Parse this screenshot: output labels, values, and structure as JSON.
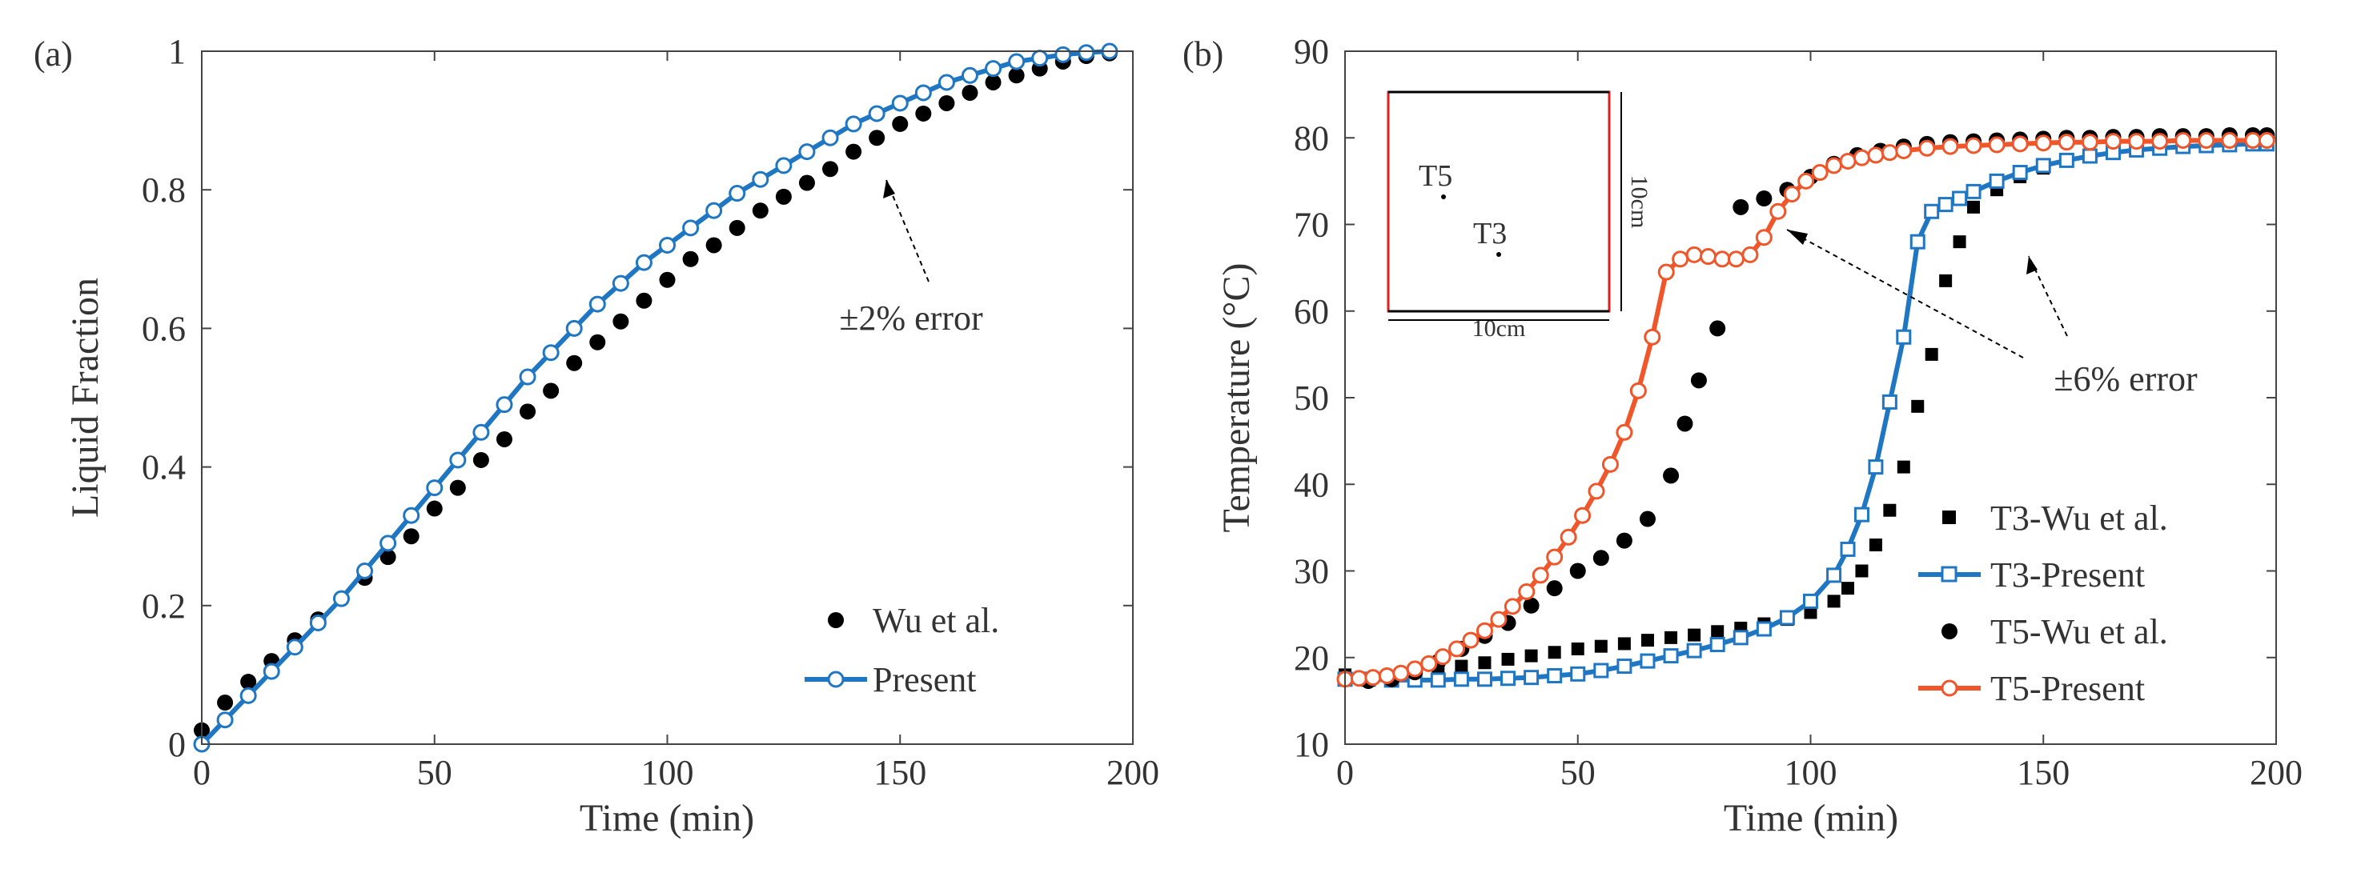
{
  "chart_data": [
    {
      "type": "line",
      "panel_label": "(a)",
      "xlabel": "Time (min)",
      "ylabel": "Liquid Fraction",
      "xlim": [
        0,
        200
      ],
      "ylim": [
        0,
        1
      ],
      "xticks": [
        0,
        50,
        100,
        150,
        200
      ],
      "xtick_labels": [
        "0",
        "50",
        "100",
        "150",
        "200"
      ],
      "yticks": [
        0,
        0.2,
        0.4,
        0.6,
        0.8,
        1
      ],
      "ytick_labels": [
        "0",
        "0.2",
        "0.4",
        "0.6",
        "0.8",
        "1"
      ],
      "legend_position": "bottom-right",
      "annotation": {
        "text": "±2% error",
        "target_x": 145,
        "target_y": 0.875
      },
      "series": [
        {
          "name": "Wu et al.",
          "style": "dots",
          "color": "#000000",
          "x": [
            0,
            5,
            10,
            15,
            20,
            25,
            30,
            35,
            40,
            45,
            50,
            55,
            60,
            65,
            70,
            75,
            80,
            85,
            90,
            95,
            100,
            105,
            110,
            115,
            120,
            125,
            130,
            135,
            140,
            145,
            150,
            155,
            160,
            165,
            170,
            175,
            180,
            185,
            190,
            195
          ],
          "y": [
            0.02,
            0.06,
            0.09,
            0.12,
            0.15,
            0.18,
            0.21,
            0.24,
            0.27,
            0.3,
            0.34,
            0.37,
            0.41,
            0.44,
            0.48,
            0.51,
            0.55,
            0.58,
            0.61,
            0.64,
            0.67,
            0.7,
            0.72,
            0.745,
            0.77,
            0.79,
            0.81,
            0.83,
            0.855,
            0.875,
            0.895,
            0.91,
            0.925,
            0.94,
            0.955,
            0.965,
            0.975,
            0.985,
            0.993,
            0.997
          ]
        },
        {
          "name": "Present",
          "style": "line-circle",
          "color": "#1f77c4",
          "x": [
            0,
            5,
            10,
            15,
            20,
            25,
            30,
            35,
            40,
            45,
            50,
            55,
            60,
            65,
            70,
            75,
            80,
            85,
            90,
            95,
            100,
            105,
            110,
            115,
            120,
            125,
            130,
            135,
            140,
            145,
            150,
            155,
            160,
            165,
            170,
            175,
            180,
            185,
            190,
            195
          ],
          "y": [
            0,
            0.035,
            0.07,
            0.105,
            0.14,
            0.175,
            0.21,
            0.25,
            0.29,
            0.33,
            0.37,
            0.41,
            0.45,
            0.49,
            0.53,
            0.565,
            0.6,
            0.635,
            0.665,
            0.695,
            0.72,
            0.745,
            0.77,
            0.795,
            0.815,
            0.835,
            0.855,
            0.875,
            0.895,
            0.91,
            0.925,
            0.94,
            0.955,
            0.965,
            0.975,
            0.985,
            0.99,
            0.995,
            0.998,
            1.0
          ]
        }
      ]
    },
    {
      "type": "line",
      "panel_label": "(b)",
      "xlabel": "Time (min)",
      "ylabel": "Temperature (°C)",
      "xlim": [
        0,
        200
      ],
      "ylim": [
        10,
        90
      ],
      "xticks": [
        0,
        50,
        100,
        150,
        200
      ],
      "xtick_labels": [
        "0",
        "50",
        "100",
        "150",
        "200"
      ],
      "yticks": [
        10,
        20,
        30,
        40,
        50,
        60,
        70,
        80,
        90
      ],
      "ytick_labels": [
        "10",
        "20",
        "30",
        "40",
        "50",
        "60",
        "70",
        "80",
        "90"
      ],
      "legend_position": "bottom-right",
      "annotation": {
        "text": "±6% error",
        "targets": [
          [
            93,
            73
          ],
          [
            133,
            68
          ]
        ]
      },
      "inset": {
        "labels": [
          "T5",
          "T3"
        ],
        "width_label": "10cm",
        "height_label": "10cm",
        "border_color": "#e02020",
        "wall_color": "#000000"
      },
      "series": [
        {
          "name": "T3-Wu et al.",
          "style": "squares",
          "color": "#000000",
          "x": [
            0,
            5,
            10,
            15,
            20,
            25,
            30,
            35,
            40,
            45,
            50,
            55,
            60,
            65,
            70,
            75,
            80,
            85,
            90,
            95,
            100,
            105,
            108,
            111,
            114,
            117,
            120,
            123,
            126,
            129,
            132,
            135,
            140,
            145,
            150,
            155,
            160,
            165,
            170,
            175,
            180,
            185,
            190,
            195,
            198
          ],
          "y": [
            18,
            17.6,
            17.8,
            18.2,
            18.5,
            19,
            19.4,
            19.8,
            20.2,
            20.6,
            21,
            21.3,
            21.6,
            22,
            22.3,
            22.6,
            23,
            23.4,
            23.9,
            24.4,
            25.2,
            26.5,
            28,
            30,
            33,
            37,
            42,
            49,
            55,
            63.5,
            68,
            72,
            74,
            75.5,
            76.5,
            77.3,
            77.8,
            78.3,
            78.7,
            79,
            79.2,
            79.4,
            79.5,
            79.6,
            79.6
          ]
        },
        {
          "name": "T3-Present",
          "style": "line-square",
          "color": "#1f77c4",
          "x": [
            0,
            5,
            10,
            15,
            20,
            25,
            30,
            35,
            40,
            45,
            50,
            55,
            60,
            65,
            70,
            75,
            80,
            85,
            90,
            95,
            100,
            105,
            108,
            111,
            114,
            117,
            120,
            123,
            126,
            129,
            132,
            135,
            140,
            145,
            150,
            155,
            160,
            165,
            170,
            175,
            180,
            185,
            190,
            195,
            198
          ],
          "y": [
            17.5,
            17.5,
            17.4,
            17.4,
            17.4,
            17.5,
            17.5,
            17.6,
            17.7,
            17.9,
            18.1,
            18.5,
            19,
            19.6,
            20.2,
            20.8,
            21.5,
            22.3,
            23.3,
            24.6,
            26.5,
            29.5,
            32.5,
            36.5,
            42,
            49.5,
            57,
            68,
            71.5,
            72.3,
            73,
            73.8,
            75,
            76,
            76.8,
            77.4,
            77.9,
            78.3,
            78.6,
            78.8,
            79,
            79.1,
            79.2,
            79.3,
            79.3
          ]
        },
        {
          "name": "T5-Wu et al.",
          "style": "dots",
          "color": "#000000",
          "x": [
            0,
            5,
            10,
            15,
            20,
            25,
            30,
            35,
            40,
            45,
            50,
            55,
            60,
            65,
            70,
            73,
            76,
            80,
            85,
            90,
            95,
            100,
            105,
            110,
            115,
            120,
            125,
            130,
            135,
            140,
            145,
            150,
            155,
            160,
            165,
            170,
            175,
            180,
            185,
            190,
            195,
            198
          ],
          "y": [
            17.5,
            17.3,
            17.5,
            18.3,
            19.5,
            21,
            22.5,
            24,
            26,
            28,
            30,
            31.5,
            33.5,
            36,
            41,
            47,
            52,
            58,
            72,
            73,
            74,
            75.5,
            77,
            78,
            78.5,
            79,
            79.3,
            79.5,
            79.6,
            79.7,
            79.8,
            79.9,
            80,
            80,
            80.1,
            80.1,
            80.2,
            80.2,
            80.2,
            80.3,
            80.3,
            80.3
          ]
        },
        {
          "name": "T5-Present",
          "style": "line-circle",
          "color": "#f0562a",
          "x": [
            0,
            3,
            6,
            9,
            12,
            15,
            18,
            21,
            24,
            27,
            30,
            33,
            36,
            39,
            42,
            45,
            48,
            51,
            54,
            57,
            60,
            63,
            66,
            69,
            72,
            75,
            78,
            81,
            84,
            87,
            90,
            93,
            96,
            99,
            102,
            105,
            108,
            111,
            114,
            117,
            120,
            125,
            130,
            135,
            140,
            145,
            150,
            155,
            160,
            165,
            170,
            175,
            180,
            185,
            190,
            195,
            198
          ],
          "y": [
            17.5,
            17.6,
            17.7,
            17.9,
            18.2,
            18.7,
            19.3,
            20.1,
            21,
            22,
            23.1,
            24.4,
            25.9,
            27.6,
            29.5,
            31.6,
            33.9,
            36.4,
            39.2,
            42.3,
            46,
            50.8,
            57,
            64.5,
            66,
            66.5,
            66.3,
            66,
            66,
            66.5,
            68.5,
            71.5,
            73.5,
            75,
            76,
            76.8,
            77.3,
            77.7,
            78,
            78.3,
            78.5,
            78.8,
            79,
            79.1,
            79.2,
            79.3,
            79.4,
            79.5,
            79.5,
            79.6,
            79.6,
            79.6,
            79.7,
            79.7,
            79.7,
            79.7,
            79.7
          ]
        }
      ]
    }
  ]
}
